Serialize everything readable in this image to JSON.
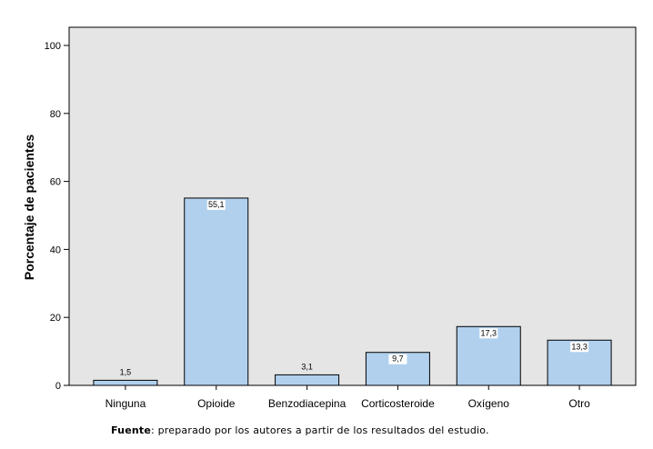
{
  "chart_data": {
    "type": "bar",
    "categories": [
      "Ninguna",
      "Opioide",
      "Benzodiacepina",
      "Corticosteroide",
      "Oxígeno",
      "Otro"
    ],
    "values": [
      1.5,
      55.1,
      3.1,
      9.7,
      17.3,
      13.3
    ],
    "value_labels": [
      "1,5",
      "55,1",
      "3,1",
      "9,7",
      "17,3",
      "13,3"
    ],
    "ylabel": "Porcentaje de pacientes",
    "xlabel": "",
    "ylim": [
      0,
      100
    ],
    "yticks": [
      0,
      20,
      40,
      60,
      80,
      100
    ],
    "grid": false,
    "colors": {
      "bar_fill": "#b1d0ee",
      "bar_stroke": "#000000",
      "plot_bg": "#e5e5e5"
    }
  },
  "source": {
    "label": "Fuente",
    "text": ": preparado por los autores a partir de los resultados del estudio."
  }
}
